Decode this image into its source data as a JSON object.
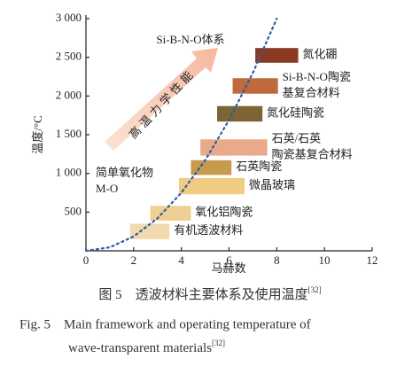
{
  "chart_data": {
    "type": "floating-bar",
    "xlabel": "马赫数",
    "ylabel": "温度/°C",
    "xlim": [
      0,
      12
    ],
    "xticks": [
      0,
      2,
      4,
      6,
      8,
      10,
      12
    ],
    "ylim": [
      0,
      3000
    ],
    "yticks": [
      {
        "value": 500,
        "label": "500"
      },
      {
        "value": 1000,
        "label": "1 000"
      },
      {
        "value": 1500,
        "label": "1 500"
      },
      {
        "value": 2000,
        "label": "2 000"
      },
      {
        "value": 2500,
        "label": "2 500"
      },
      {
        "value": 3000,
        "label": "3 000"
      }
    ],
    "bars": [
      {
        "label": [
          "有机透波材料"
        ],
        "color": "#f2d9ae",
        "x": [
          1.85,
          3.5
        ],
        "y": [
          150,
          350
        ]
      },
      {
        "label": [
          "氧化铝陶瓷"
        ],
        "color": "#efcf92",
        "x": [
          2.7,
          4.4
        ],
        "y": [
          390,
          580
        ]
      },
      {
        "label": [
          "微晶玻璃"
        ],
        "color": "#f0cc82",
        "x": [
          3.9,
          6.65
        ],
        "y": [
          730,
          940
        ]
      },
      {
        "label": [
          "石英陶瓷"
        ],
        "color": "#c79a4c",
        "x": [
          4.4,
          6.1
        ],
        "y": [
          980,
          1170
        ]
      },
      {
        "label": [
          "石英/石英",
          "陶瓷基复合材料"
        ],
        "color": "#e9aa8a",
        "x": [
          4.8,
          7.6
        ],
        "y": [
          1230,
          1440
        ]
      },
      {
        "label": [
          "氮化硅陶瓷"
        ],
        "color": "#7c6433",
        "x": [
          5.5,
          7.4
        ],
        "y": [
          1670,
          1870
        ]
      },
      {
        "label": [
          "Si-B-N-O陶瓷",
          "基复合材料"
        ],
        "color": "#c0693c",
        "x": [
          6.15,
          8.05
        ],
        "y": [
          2030,
          2230
        ]
      },
      {
        "label": [
          "氮化硼"
        ],
        "color": "#8b3a22",
        "x": [
          7.1,
          8.9
        ],
        "y": [
          2430,
          2620
        ]
      }
    ],
    "curve": {
      "color": "#2b5ea6",
      "x": [
        0,
        1,
        2,
        3,
        4,
        5,
        6,
        7,
        8
      ],
      "values": [
        0,
        45,
        185,
        420,
        750,
        1170,
        1690,
        2300,
        3000
      ]
    },
    "annotations": {
      "system": "Si-B-N-O体系",
      "oxide": [
        "简单氧化物",
        "M-O"
      ],
      "arrow": "高温力学性能"
    }
  },
  "caption": {
    "zh": "图 5　透波材料主要体系及使用温度",
    "zh_ref": "[32]",
    "en": [
      "Fig. 5　Main framework and operating temperature of",
      "wave-transparent materials"
    ],
    "en_ref": "[32]"
  }
}
